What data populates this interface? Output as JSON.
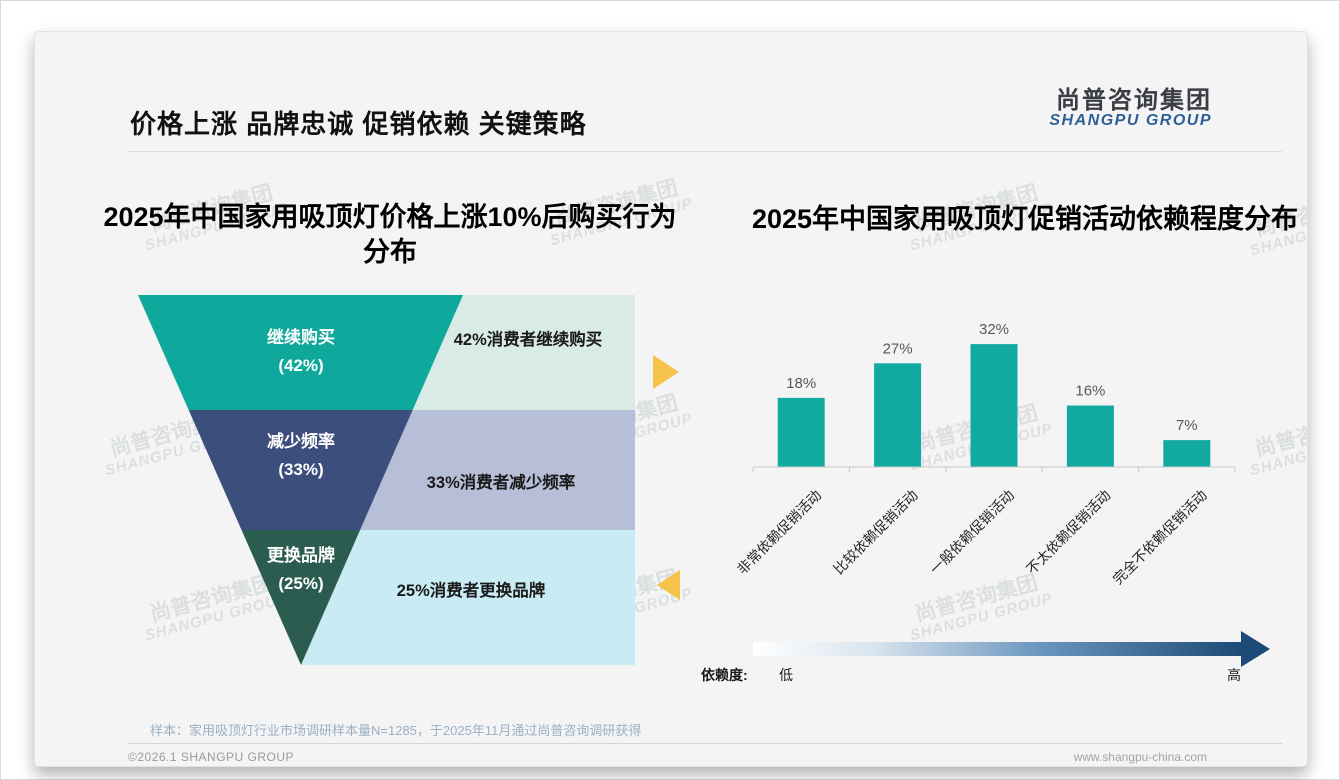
{
  "slide": {
    "header_title": "价格上涨 品牌忠诚 促销依赖 关键策略",
    "logo_cn": "尚普咨询集团",
    "logo_en": "SHANGPU GROUP",
    "watermark_cn": "尚普咨询集团",
    "watermark_en": "SHANGPU GROUP",
    "footnote": "样本：家用吸顶灯行业市场调研样本量N=1285，于2025年11月通过尚普咨询调研获得",
    "footer_left": "©2026.1 SHANGPU GROUP",
    "footer_right": "www.shangpu-china.com"
  },
  "chart_data": [
    {
      "type": "funnel",
      "title": "2025年中国家用吸顶灯价格上涨10%后购买行为分布",
      "segments": [
        {
          "label": "继续购买",
          "value": 42,
          "value_label": "(42%)",
          "annotation": "42%消费者继续购买",
          "color": "#0fa89c",
          "annotation_bg": "#d8ebe7"
        },
        {
          "label": "减少频率",
          "value": 33,
          "value_label": "(33%)",
          "annotation": "33%消费者减少频率",
          "color": "#3c4e7b",
          "annotation_bg": "#b7bfd8"
        },
        {
          "label": "更换品牌",
          "value": 25,
          "value_label": "(25%)",
          "annotation": "25%消费者更换品牌",
          "color": "#2c5c4f",
          "annotation_bg": "#c8ebf4"
        }
      ],
      "accent_arrow_color": "#f5c24a",
      "label_text_color": "#ffffff",
      "annotation_text_color": "#1a1a1a"
    },
    {
      "type": "bar",
      "title": "2025年中国家用吸顶灯促销活动依赖程度分布",
      "categories": [
        "非常依赖促销活动",
        "比较依赖促销活动",
        "一般依赖促销活动",
        "不太依赖促销活动",
        "完全不依赖促销活动"
      ],
      "values": [
        18,
        27,
        32,
        16,
        7
      ],
      "value_labels": [
        "18%",
        "27%",
        "32%",
        "16%",
        "7%"
      ],
      "bar_color": "#12a9a0",
      "value_label_color": "#595959",
      "category_label_color": "#262626",
      "y_axis_visible": false,
      "grid": false,
      "legend": "none",
      "dependency_axis": {
        "legend_label": "依赖度:",
        "low": "低",
        "high": "高",
        "gradient_from": "#ffffff",
        "gradient_to": "#1d4b77"
      }
    }
  ]
}
